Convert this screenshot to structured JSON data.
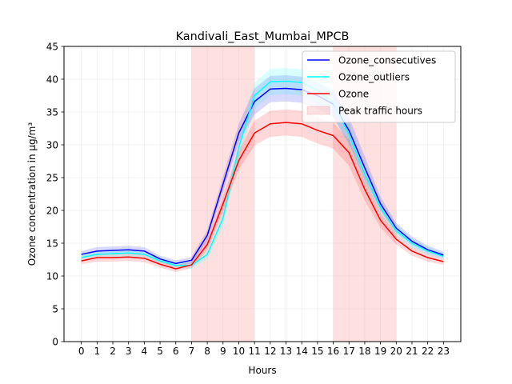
{
  "chart_data": {
    "type": "line",
    "title": "Kandivali_East_Mumbai_MPCB",
    "xlabel": "Hours",
    "ylabel": "Ozone concentration in µg/m³",
    "xlim": [
      -1.1,
      24.1
    ],
    "ylim": [
      0,
      45
    ],
    "x": [
      0,
      1,
      2,
      3,
      4,
      5,
      6,
      7,
      8,
      9,
      10,
      11,
      12,
      13,
      14,
      15,
      16,
      17,
      18,
      19,
      20,
      21,
      22,
      23
    ],
    "x_tick_labels": [
      "0",
      "1",
      "2",
      "3",
      "4",
      "5",
      "6",
      "7",
      "8",
      "9",
      "10",
      "11",
      "12",
      "13",
      "14",
      "15",
      "16",
      "17",
      "18",
      "19",
      "20",
      "21",
      "22",
      "23"
    ],
    "y_ticks": [
      0,
      5,
      10,
      15,
      20,
      25,
      30,
      35,
      40,
      45
    ],
    "y_tick_labels": [
      "0",
      "5",
      "10",
      "15",
      "20",
      "25",
      "30",
      "35",
      "40",
      "45"
    ],
    "grid": true,
    "legend_position": "top-right",
    "shaded_regions": [
      {
        "name": "Peak traffic hours",
        "from": 7,
        "to": 11,
        "color": "#ff0000"
      },
      {
        "name": "Peak traffic hours",
        "from": 16,
        "to": 20,
        "color": "#ff0000"
      }
    ],
    "series": [
      {
        "name": "Ozone_consecutives",
        "color": "#0000ff",
        "values": [
          13.3,
          13.8,
          13.9,
          14.0,
          13.8,
          12.6,
          11.9,
          12.4,
          16.2,
          24.0,
          31.8,
          36.6,
          38.5,
          38.6,
          38.4,
          37.5,
          36.2,
          32.2,
          26.5,
          21.0,
          17.3,
          15.3,
          14.0,
          13.2
        ],
        "ci_lower": [
          12.8,
          13.2,
          13.3,
          13.4,
          13.2,
          12.1,
          11.4,
          11.9,
          15.4,
          22.8,
          30.4,
          34.6,
          36.5,
          36.6,
          36.4,
          35.5,
          34.2,
          30.2,
          24.8,
          19.9,
          16.5,
          14.6,
          13.4,
          12.7
        ],
        "ci_upper": [
          13.8,
          14.4,
          14.5,
          14.6,
          14.4,
          13.1,
          12.4,
          12.9,
          17.0,
          25.2,
          33.2,
          38.6,
          40.5,
          40.6,
          40.4,
          39.5,
          38.2,
          34.2,
          28.2,
          22.1,
          18.1,
          16.0,
          14.6,
          13.7
        ]
      },
      {
        "name": "Ozone_outliers",
        "color": "#00ffff",
        "values": [
          12.8,
          13.3,
          13.4,
          13.5,
          13.3,
          12.3,
          11.6,
          11.6,
          13.3,
          18.8,
          29.6,
          37.5,
          39.6,
          39.7,
          39.5,
          38.3,
          36.4,
          31.5,
          25.5,
          20.4,
          16.9,
          15.0,
          13.8,
          13.0
        ],
        "ci_lower": [
          12.3,
          12.7,
          12.8,
          12.9,
          12.7,
          11.8,
          11.1,
          11.1,
          12.6,
          17.6,
          28.0,
          35.5,
          37.6,
          37.7,
          37.5,
          36.3,
          34.4,
          29.5,
          23.8,
          19.3,
          16.1,
          14.3,
          13.2,
          12.5
        ],
        "ci_upper": [
          13.3,
          13.9,
          14.0,
          14.1,
          13.9,
          12.8,
          12.1,
          12.1,
          14.0,
          20.0,
          31.2,
          39.5,
          41.6,
          41.7,
          41.5,
          40.3,
          38.4,
          33.5,
          27.2,
          21.5,
          17.7,
          15.7,
          14.4,
          13.5
        ]
      },
      {
        "name": "Ozone",
        "color": "#ff0000",
        "values": [
          12.3,
          12.8,
          12.8,
          12.9,
          12.7,
          11.8,
          11.1,
          11.7,
          14.8,
          21.0,
          27.6,
          31.8,
          33.2,
          33.4,
          33.2,
          32.2,
          31.4,
          28.8,
          23.2,
          18.5,
          15.6,
          13.8,
          12.8,
          12.2
        ],
        "ci_lower": [
          11.8,
          12.2,
          12.2,
          12.3,
          12.1,
          11.3,
          10.6,
          11.2,
          14.0,
          19.8,
          26.2,
          29.9,
          31.2,
          31.4,
          31.2,
          30.2,
          29.4,
          26.8,
          21.5,
          17.4,
          14.8,
          13.1,
          12.2,
          11.7
        ],
        "ci_upper": [
          12.8,
          13.4,
          13.4,
          13.5,
          13.3,
          12.3,
          11.6,
          12.2,
          15.6,
          22.2,
          29.0,
          33.7,
          35.2,
          35.4,
          35.2,
          34.2,
          33.4,
          30.8,
          24.9,
          19.6,
          16.4,
          14.5,
          13.4,
          12.7
        ]
      }
    ]
  }
}
